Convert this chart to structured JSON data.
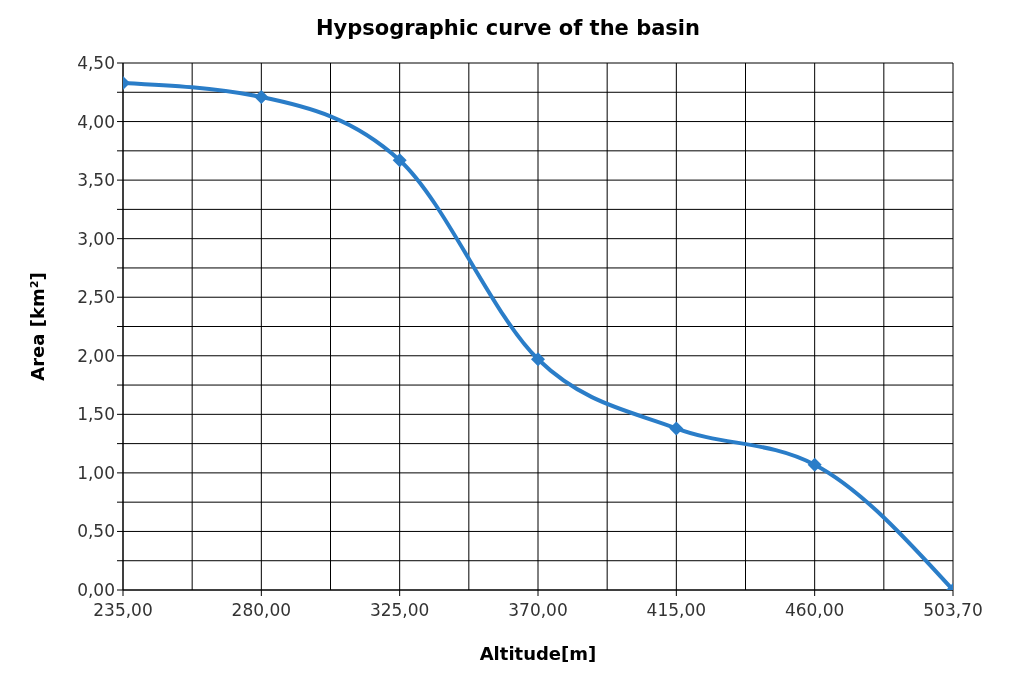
{
  "chart_data": {
    "type": "line",
    "title": "Hypsographic curve of the basin",
    "xlabel": "Altitude[m]",
    "ylabel": "Area [km²]",
    "categories": [
      "235,00",
      "280,00",
      "325,00",
      "370,00",
      "415,00",
      "460,00",
      "503,70"
    ],
    "series": [
      {
        "color": "#2a7dc8",
        "values": [
          4.33,
          4.21,
          3.67,
          1.97,
          1.38,
          1.07,
          0.0
        ]
      }
    ],
    "ylim": [
      0,
      4.5
    ],
    "yticks": [
      {
        "value": 0,
        "label": "0,00"
      },
      {
        "value": 0.25,
        "label": null
      },
      {
        "value": 0.5,
        "label": "0,50"
      },
      {
        "value": 0.75,
        "label": null
      },
      {
        "value": 1,
        "label": "1,00"
      },
      {
        "value": 1.25,
        "label": null
      },
      {
        "value": 1.5,
        "label": "1,50"
      },
      {
        "value": 1.75,
        "label": null
      },
      {
        "value": 2,
        "label": "2,00"
      },
      {
        "value": 2.25,
        "label": null
      },
      {
        "value": 2.5,
        "label": "2,50"
      },
      {
        "value": 2.75,
        "label": null
      },
      {
        "value": 3,
        "label": "3,00"
      },
      {
        "value": 3.25,
        "label": null
      },
      {
        "value": 3.5,
        "label": "3,50"
      },
      {
        "value": 3.75,
        "label": null
      },
      {
        "value": 4,
        "label": "4,00"
      },
      {
        "value": 4.25,
        "label": null
      },
      {
        "value": 4.5,
        "label": "4,50"
      }
    ],
    "grid": true,
    "marker": "diamond",
    "line_style": "solid"
  }
}
